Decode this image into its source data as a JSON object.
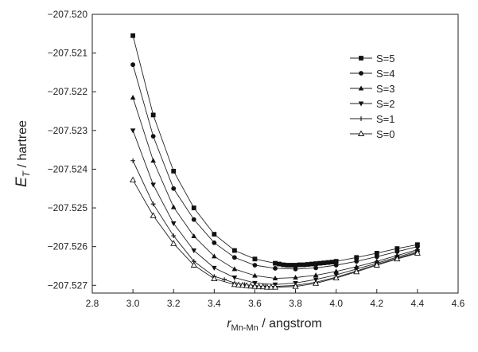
{
  "chart_data": {
    "type": "line",
    "title": "",
    "xlabel": {
      "main": "r",
      "sub": "Mn-Mn",
      "rest": " / angstrom"
    },
    "ylabel": {
      "main": "E",
      "sub": "T",
      "rest": " / hartree"
    },
    "xlim": [
      2.8,
      4.6
    ],
    "ylim": [
      -207.5272,
      -207.52
    ],
    "xticks": [
      2.8,
      3.0,
      3.2,
      3.4,
      3.6,
      3.8,
      4.0,
      4.2,
      4.4,
      4.6
    ],
    "xtick_labels": [
      "2.8",
      "3.0",
      "3.2",
      "3.4",
      "3.6",
      "3.8",
      "4.0",
      "4.2",
      "4.4",
      "4.6"
    ],
    "yticks": [
      -207.52,
      -207.521,
      -207.522,
      -207.523,
      -207.524,
      -207.525,
      -207.526,
      -207.527
    ],
    "ytick_labels": [
      "−207.520",
      "−207.521",
      "−207.522",
      "−207.523",
      "−207.524",
      "−207.525",
      "−207.526",
      "−207.527"
    ],
    "grid": false,
    "legend_position": "top-right",
    "series": [
      {
        "name": "S=5",
        "marker": "square",
        "x": [
          3.0,
          3.1,
          3.2,
          3.3,
          3.4,
          3.5,
          3.6,
          3.7,
          3.72,
          3.74,
          3.76,
          3.78,
          3.8,
          3.82,
          3.84,
          3.86,
          3.88,
          3.9,
          3.92,
          3.94,
          3.96,
          3.98,
          4.0,
          4.1,
          4.2,
          4.3,
          4.4
        ],
        "y": [
          -207.52055,
          -207.5226,
          -207.52405,
          -207.525,
          -207.52568,
          -207.5261,
          -207.52632,
          -207.52643,
          -207.52645,
          -207.52647,
          -207.52648,
          -207.52648,
          -207.52648,
          -207.52647,
          -207.52647,
          -207.52646,
          -207.52645,
          -207.52644,
          -207.52643,
          -207.52642,
          -207.52641,
          -207.5264,
          -207.52638,
          -207.52628,
          -207.52617,
          -207.52605,
          -207.52595
        ]
      },
      {
        "name": "S=4",
        "marker": "circle",
        "x": [
          3.0,
          3.1,
          3.2,
          3.3,
          3.4,
          3.5,
          3.6,
          3.7,
          3.8,
          3.9,
          4.0,
          4.1,
          4.2,
          4.3,
          4.4
        ],
        "y": [
          -207.5213,
          -207.52315,
          -207.5245,
          -207.5253,
          -207.5259,
          -207.52628,
          -207.52648,
          -207.52656,
          -207.52658,
          -207.52655,
          -207.52648,
          -207.52638,
          -207.52626,
          -207.52613,
          -207.526
        ]
      },
      {
        "name": "S=3",
        "marker": "triangle-up",
        "x": [
          3.0,
          3.1,
          3.2,
          3.3,
          3.4,
          3.5,
          3.6,
          3.7,
          3.8,
          3.9,
          4.0,
          4.1,
          4.2,
          4.3,
          4.4
        ],
        "y": [
          -207.52215,
          -207.52378,
          -207.52498,
          -207.52573,
          -207.52625,
          -207.52658,
          -207.52675,
          -207.52682,
          -207.5268,
          -207.52674,
          -207.52664,
          -207.52652,
          -207.52638,
          -207.52623,
          -207.52608
        ]
      },
      {
        "name": "S=2",
        "marker": "triangle-down",
        "x": [
          3.0,
          3.1,
          3.2,
          3.3,
          3.4,
          3.5,
          3.6,
          3.7,
          3.8,
          3.9,
          4.0,
          4.1,
          4.2,
          4.3,
          4.4
        ],
        "y": [
          -207.523,
          -207.5244,
          -207.5254,
          -207.5261,
          -207.52655,
          -207.5268,
          -207.52694,
          -207.52698,
          -207.52694,
          -207.52685,
          -207.52673,
          -207.52658,
          -207.52643,
          -207.52627,
          -207.52612
        ]
      },
      {
        "name": "S=1",
        "marker": "plus",
        "x": [
          3.0,
          3.1,
          3.2,
          3.3,
          3.4,
          3.45,
          3.5,
          3.55,
          3.6,
          3.65,
          3.7,
          3.8,
          3.9,
          4.0,
          4.1,
          4.2,
          4.3,
          4.4
        ],
        "y": [
          -207.52378,
          -207.5249,
          -207.52572,
          -207.52638,
          -207.52677,
          -207.52685,
          -207.52694,
          -207.52698,
          -207.52701,
          -207.52703,
          -207.52703,
          -207.527,
          -207.52692,
          -207.52679,
          -207.52663,
          -207.52646,
          -207.5263,
          -207.52615
        ]
      },
      {
        "name": "S=0",
        "marker": "triangle-open",
        "x": [
          3.0,
          3.1,
          3.2,
          3.3,
          3.4,
          3.5,
          3.52,
          3.54,
          3.56,
          3.58,
          3.6,
          3.62,
          3.64,
          3.66,
          3.68,
          3.7,
          3.8,
          3.9,
          4.0,
          4.1,
          4.2,
          4.3,
          4.4
        ],
        "y": [
          -207.52428,
          -207.5252,
          -207.52592,
          -207.52648,
          -207.52683,
          -207.52698,
          -207.52699,
          -207.527,
          -207.52701,
          -207.52702,
          -207.52703,
          -207.52704,
          -207.52704,
          -207.52705,
          -207.52705,
          -207.52705,
          -207.52703,
          -207.52695,
          -207.52681,
          -207.52665,
          -207.52648,
          -207.52632,
          -207.52617
        ]
      }
    ]
  }
}
